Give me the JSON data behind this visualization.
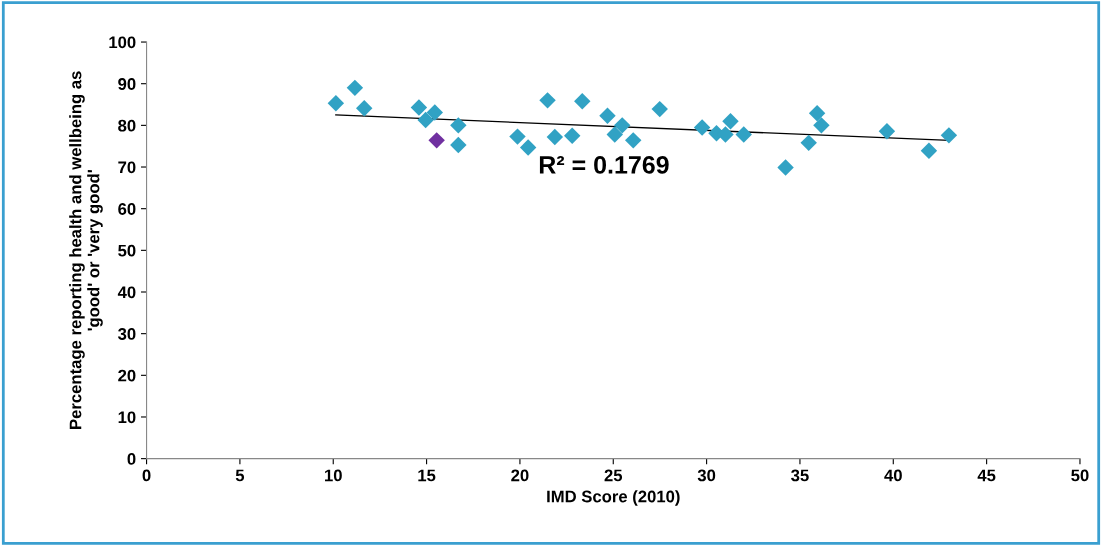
{
  "chart_data": {
    "type": "scatter",
    "xlabel": "IMD Score (2010)",
    "ylabel": "Percentage reporting health and wellbeing as\n'good' or 'very good'",
    "xlim": [
      0,
      50
    ],
    "xticks": [
      0,
      5,
      10,
      15,
      20,
      25,
      30,
      35,
      40,
      45,
      50
    ],
    "ylim": [
      0,
      100
    ],
    "yticks": [
      0,
      10,
      20,
      30,
      40,
      50,
      60,
      70,
      80,
      90,
      100
    ],
    "grid": false,
    "legend": false,
    "marker": "diamond",
    "annotations": [
      "R² = 0.1769"
    ],
    "series": [
      {
        "color": "#31a2c4",
        "x": [
          10.14,
          11.16,
          11.66,
          14.59,
          15.44,
          14.95,
          16.7,
          16.7,
          19.87,
          20.44,
          21.48,
          21.87,
          22.8,
          23.34,
          24.69,
          25.08,
          25.48,
          26.07,
          27.49,
          29.76,
          30.53,
          31.01,
          31.28,
          31.99,
          34.23,
          35.47,
          35.92,
          36.15,
          39.66,
          41.91,
          42.98
        ],
        "values": [
          85.3,
          89.0,
          84.1,
          84.3,
          83.1,
          81.3,
          80.0,
          75.3,
          77.3,
          74.7,
          86.0,
          77.2,
          77.5,
          85.8,
          82.3,
          77.8,
          80.0,
          76.4,
          83.9,
          79.5,
          78.1,
          77.8,
          81.0,
          77.8,
          69.9,
          75.8,
          82.9,
          80.0,
          78.6,
          73.9,
          77.6
        ]
      },
      {
        "color": "#7030a0",
        "x": [
          15.54
        ],
        "values": [
          76.4
        ]
      },
      {
        "type": "line",
        "color": "#000000",
        "marker": "none",
        "x": [
          10.14,
          42.98
        ],
        "values": [
          82.5,
          76.4
        ]
      }
    ]
  }
}
